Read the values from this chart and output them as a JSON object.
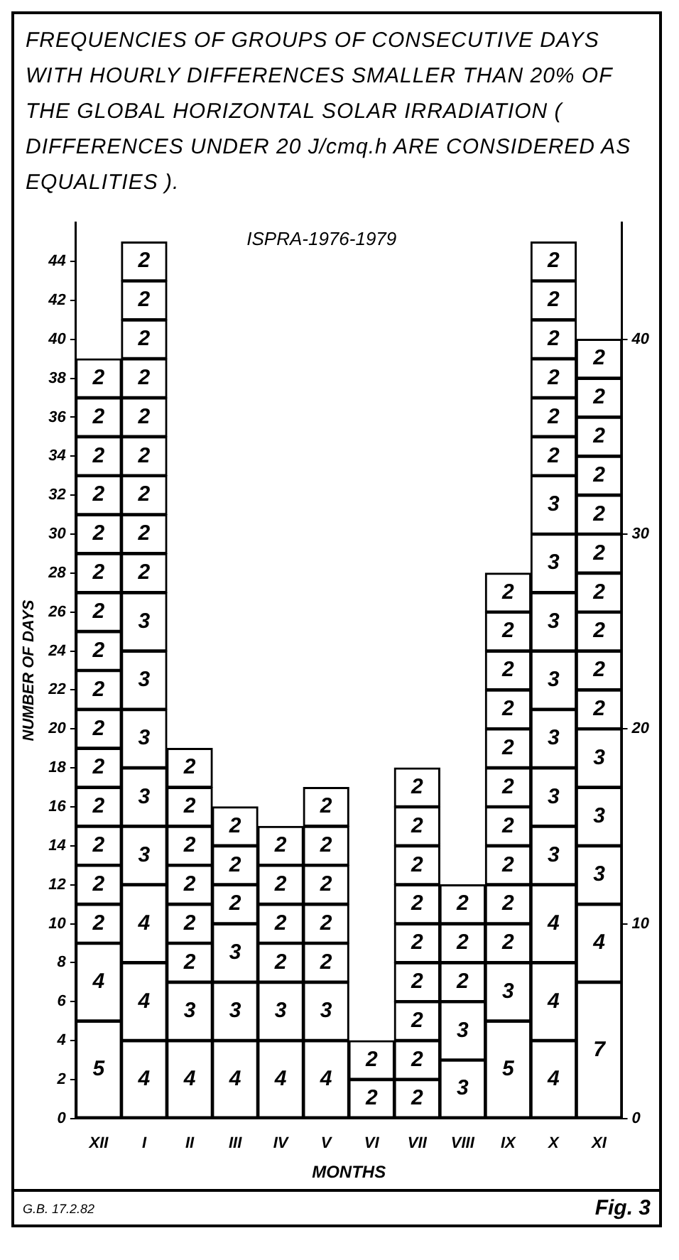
{
  "chart_data": {
    "type": "bar",
    "title": "FREQUENCIES OF GROUPS OF CONSECUTIVE DAYS WITH HOURLY DIFFERENCES SMALLER THAN 20% OF THE GLOBAL HORIZONTAL SOLAR IRRADIATION ( DIFFERENCES UNDER 20 J/cmq.h ARE CONSIDERED AS EQUALITIES ).",
    "xlabel": "MONTHS",
    "ylabel": "NUMBER OF DAYS",
    "annotations": [
      "ISPRA-1976-1979",
      "G.B. 17.2.82",
      "Fig. 3"
    ],
    "categories": [
      "XII",
      "I",
      "II",
      "III",
      "IV",
      "V",
      "VI",
      "VII",
      "VIII",
      "IX",
      "X",
      "XI"
    ],
    "stacked": true,
    "data_labels": true,
    "grid": false,
    "legend": false,
    "ylim": [
      0,
      46
    ],
    "yticks": [
      0,
      2,
      4,
      6,
      8,
      10,
      12,
      14,
      16,
      18,
      20,
      22,
      24,
      26,
      28,
      30,
      32,
      34,
      36,
      38,
      40,
      42,
      44
    ],
    "y2lim": [
      0,
      46
    ],
    "y2ticks": [
      0,
      10,
      20,
      30,
      40
    ],
    "series": [
      {
        "color": "#ffffff",
        "values": [
          5,
          4,
          4,
          4,
          4,
          4,
          2,
          2,
          3,
          5,
          4,
          7
        ]
      },
      {
        "color": "#ffffff",
        "values": [
          4,
          4,
          3,
          3,
          3,
          3,
          2,
          2,
          3,
          3,
          4,
          4
        ]
      },
      {
        "color": "#ffffff",
        "values": [
          2,
          4,
          2,
          3,
          2,
          2,
          null,
          2,
          2,
          2,
          4,
          3
        ]
      },
      {
        "color": "#ffffff",
        "values": [
          2,
          3,
          2,
          2,
          2,
          2,
          null,
          2,
          2,
          2,
          3,
          3
        ]
      },
      {
        "color": "#ffffff",
        "values": [
          2,
          3,
          2,
          2,
          2,
          2,
          null,
          2,
          2,
          2,
          3,
          3
        ]
      },
      {
        "color": "#ffffff",
        "values": [
          2,
          3,
          2,
          2,
          2,
          2,
          null,
          2,
          null,
          2,
          3,
          2
        ]
      },
      {
        "color": "#ffffff",
        "values": [
          2,
          3,
          2,
          null,
          null,
          2,
          null,
          2,
          null,
          2,
          3,
          2
        ]
      },
      {
        "color": "#ffffff",
        "values": [
          2,
          3,
          2,
          null,
          null,
          null,
          null,
          2,
          null,
          2,
          3,
          2
        ]
      },
      {
        "color": "#ffffff",
        "values": [
          2,
          2,
          null,
          null,
          null,
          null,
          null,
          2,
          null,
          2,
          3,
          2
        ]
      },
      {
        "color": "#ffffff",
        "values": [
          2,
          2,
          null,
          null,
          null,
          null,
          null,
          null,
          null,
          2,
          3,
          2
        ]
      },
      {
        "color": "#ffffff",
        "values": [
          2,
          2,
          null,
          null,
          null,
          null,
          null,
          null,
          null,
          2,
          2,
          2
        ]
      },
      {
        "color": "#ffffff",
        "values": [
          2,
          2,
          null,
          null,
          null,
          null,
          null,
          null,
          null,
          2,
          2,
          2
        ]
      },
      {
        "color": "#ffffff",
        "values": [
          2,
          2,
          null,
          null,
          null,
          null,
          null,
          null,
          null,
          null,
          2,
          2
        ]
      },
      {
        "color": "#ffffff",
        "values": [
          2,
          2,
          null,
          null,
          null,
          null,
          null,
          null,
          null,
          null,
          2,
          2
        ]
      },
      {
        "color": "#ffffff",
        "values": [
          2,
          2,
          null,
          null,
          null,
          null,
          null,
          null,
          null,
          null,
          2,
          2
        ]
      },
      {
        "color": "#ffffff",
        "values": [
          2,
          2,
          null,
          null,
          null,
          null,
          null,
          null,
          null,
          null,
          2,
          null
        ]
      },
      {
        "color": "#ffffff",
        "values": [
          2,
          2,
          null,
          null,
          null,
          null,
          null,
          null,
          null,
          null,
          null,
          null
        ]
      }
    ]
  }
}
